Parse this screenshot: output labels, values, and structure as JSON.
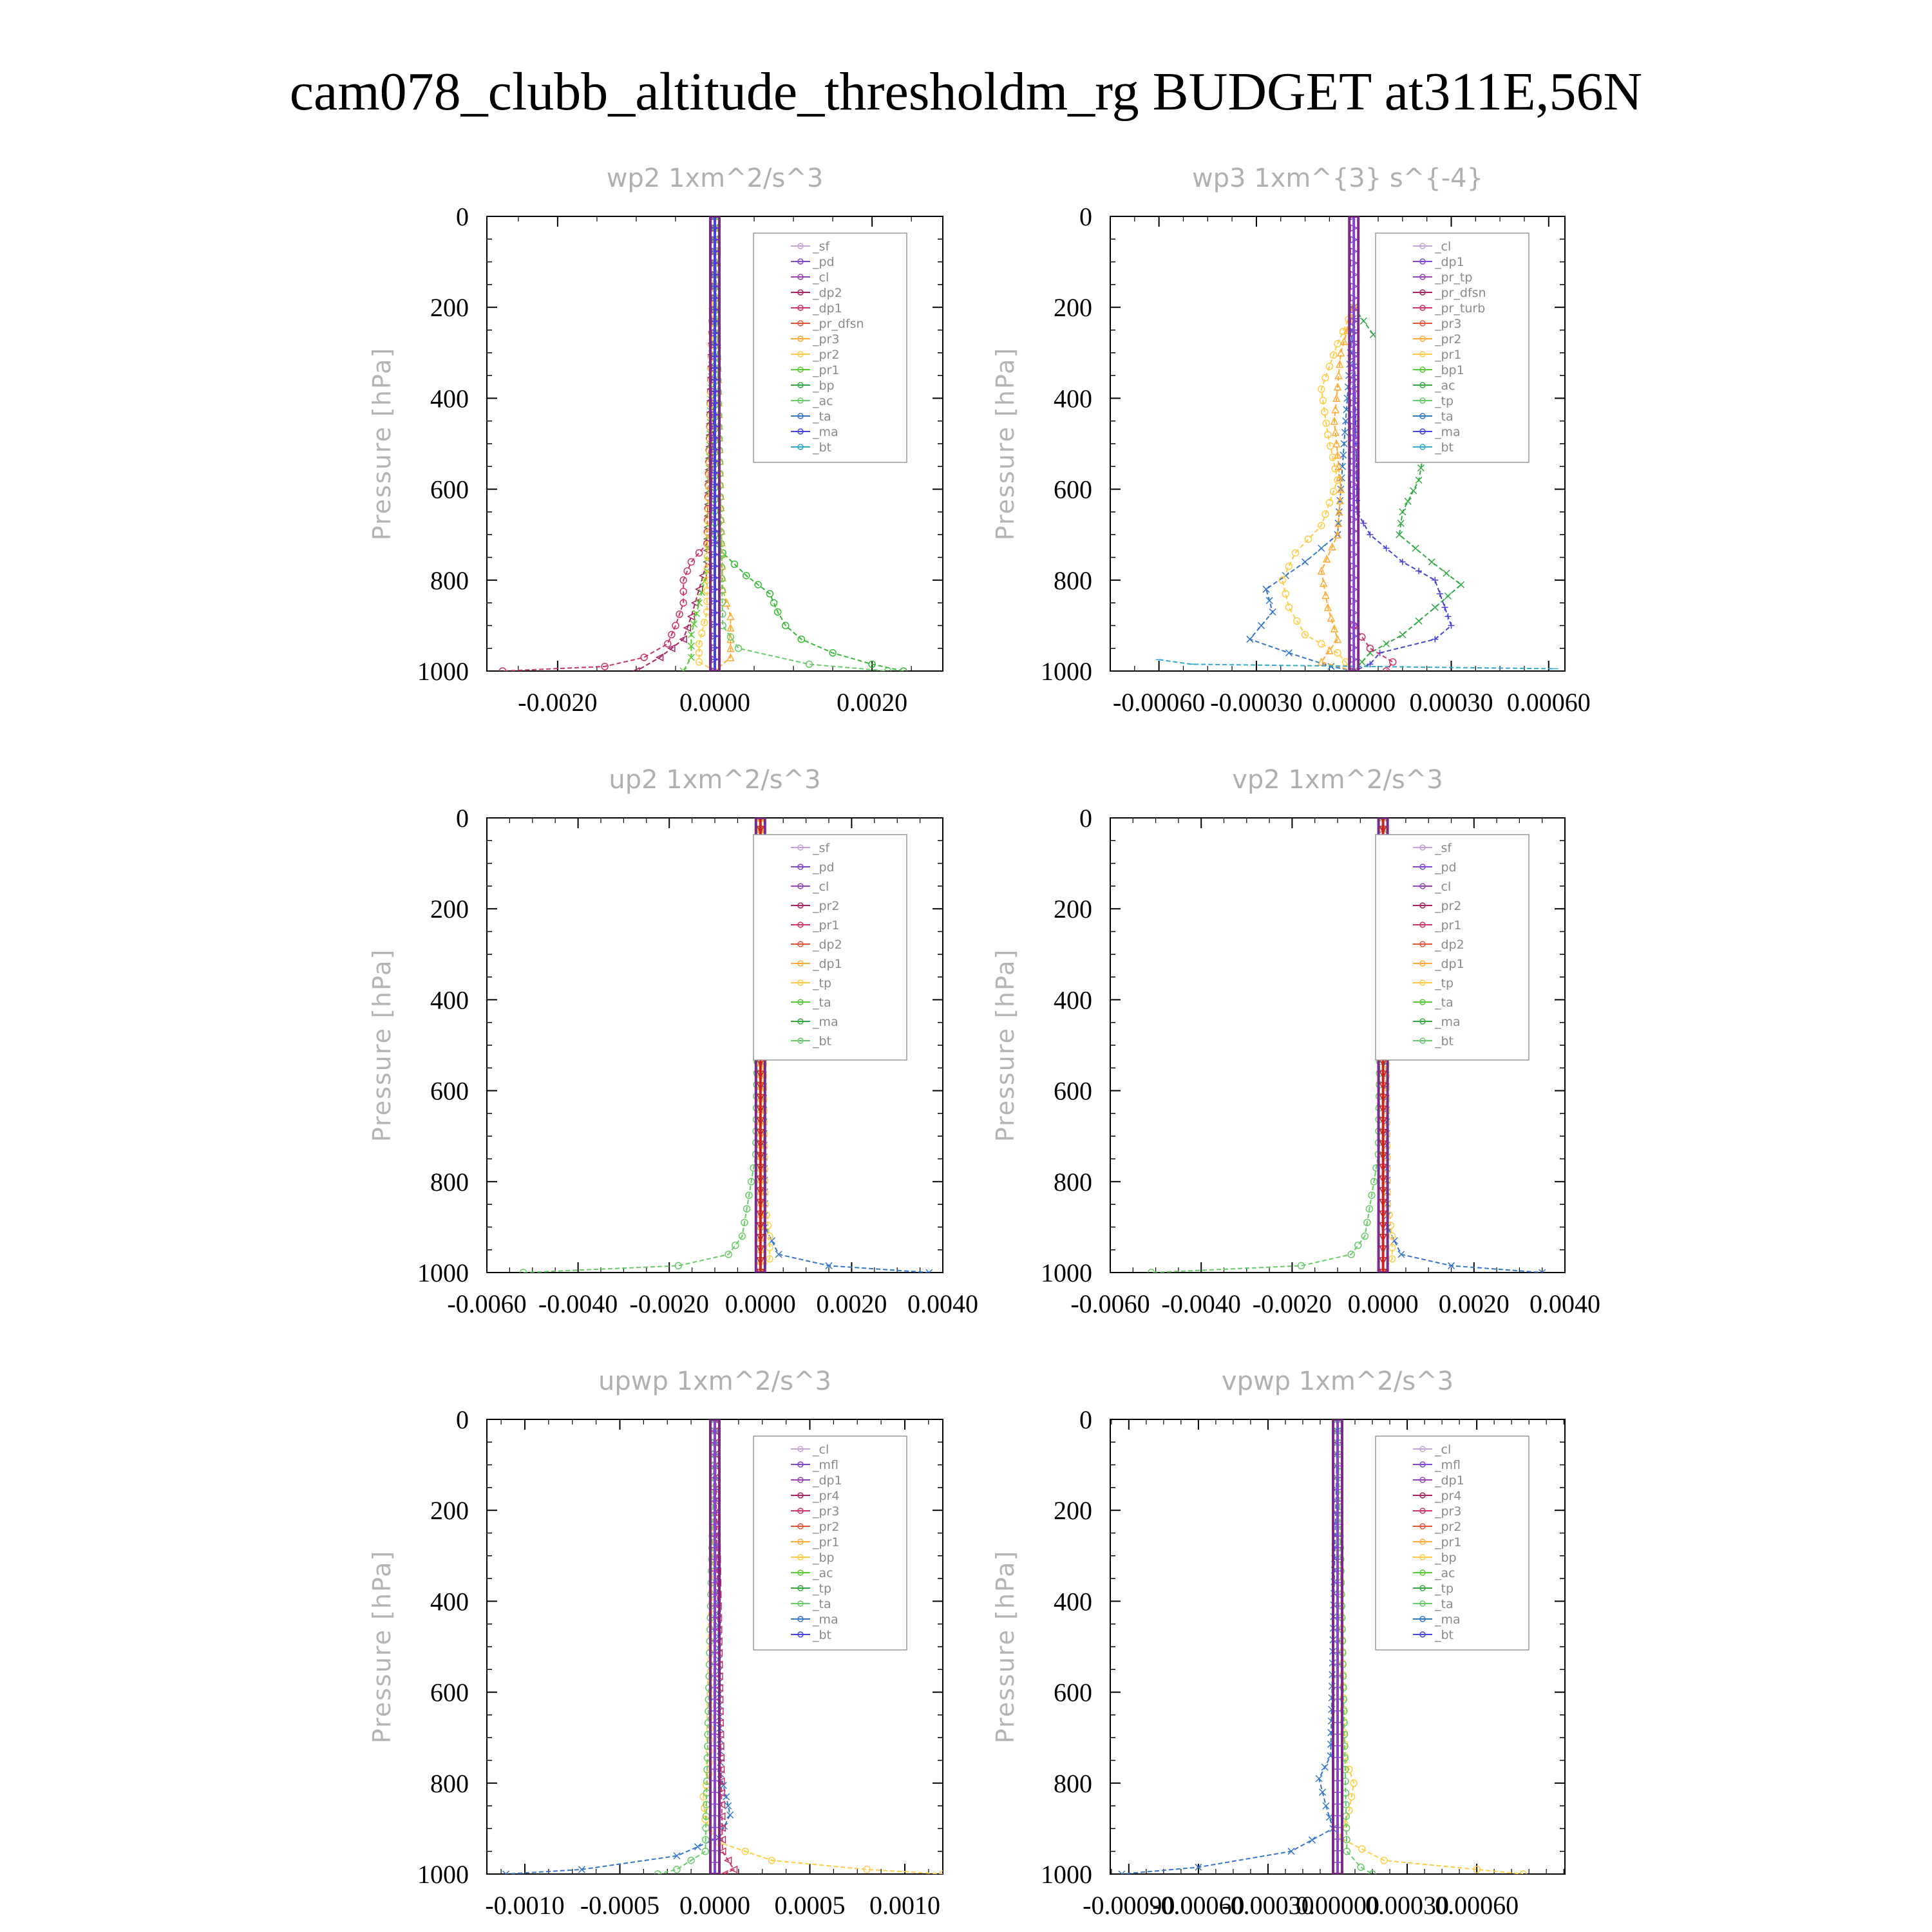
{
  "figure_title": "cam078_clubb_altitude_thresholdm_rg  BUDGET at311E,56N",
  "chart_data": [
    {
      "type": "line",
      "title": "wp2   1xm^2/s^3",
      "ylabel": "Pressure [hPa]",
      "ylim": [
        1000,
        0
      ],
      "yticks": [
        "0",
        "200",
        "400",
        "600",
        "800",
        "1000"
      ],
      "xlim": [
        -0.0029,
        0.0029
      ],
      "xticks": [
        {
          "v": -0.002,
          "label": "-0.0020"
        },
        {
          "v": 0.0,
          "label": "0.0000"
        },
        {
          "v": 0.002,
          "label": "0.0020"
        }
      ],
      "legend": [
        "_sf",
        "_pd",
        "_cl",
        "_dp2",
        "_dp1",
        "_pr_dfsn",
        "_pr3",
        "_pr2",
        "_pr1",
        "_bp",
        "_ac",
        "_ta",
        "_ma",
        "_bt"
      ],
      "legend_position": "top-right",
      "series": [
        {
          "name": "_bp",
          "color": "#33bb33",
          "marker": "o",
          "p": [
            0,
            700,
            740,
            790,
            830,
            870,
            900,
            930,
            960,
            985,
            1000
          ],
          "x": [
            0,
            0,
            0.0001,
            0.0004,
            0.0007,
            0.0008,
            0.0009,
            0.0011,
            0.0015,
            0.002,
            0.0024
          ]
        },
        {
          "name": "_dp1",
          "color": "#cc3366",
          "marker": "o",
          "p": [
            0,
            720,
            760,
            800,
            850,
            900,
            940,
            970,
            990,
            1000
          ],
          "x": [
            0,
            -0.0001,
            -0.0003,
            -0.0004,
            -0.0004,
            -0.0005,
            -0.0006,
            -0.0009,
            -0.0014,
            -0.0027
          ]
        },
        {
          "name": "_dp2",
          "color": "#aa2266",
          "marker": "<",
          "p": [
            0,
            760,
            820,
            880,
            930,
            970,
            1000
          ],
          "x": [
            0,
            -0.0001,
            -0.0002,
            -0.0003,
            -0.0004,
            -0.0007,
            -0.001
          ]
        },
        {
          "name": "_pr3",
          "color": "#ffaa33",
          "marker": "^",
          "p": [
            0,
            820,
            880,
            930,
            970,
            1000
          ],
          "x": [
            0,
            0.0001,
            0.0002,
            0.0002,
            0.0002,
            0.0
          ]
        },
        {
          "name": "_pr1",
          "color": "#55cc33",
          "marker": "x",
          "p": [
            0,
            780,
            850,
            920,
            970,
            1000
          ],
          "x": [
            0,
            -0.0001,
            -0.0002,
            -0.0003,
            -0.0003,
            -0.0004
          ]
        },
        {
          "name": "_pr2",
          "color": "#ffcc44",
          "marker": "o",
          "p": [
            0,
            800,
            870,
            940,
            980,
            1000
          ],
          "x": [
            0,
            -0.0001,
            -0.0001,
            -0.0002,
            -0.0002,
            0
          ]
        },
        {
          "name": "_ac",
          "color": "#66cc66",
          "marker": "o",
          "p": [
            0,
            900,
            950,
            985,
            1000
          ],
          "x": [
            0,
            0.0001,
            0.0003,
            0.0012,
            0.0022
          ]
        },
        {
          "name": "_cl",
          "color": "#8844cc",
          "marker": ">",
          "p": [
            0,
            1000
          ],
          "x": [
            0,
            0
          ]
        },
        {
          "name": "_ta",
          "color": "#4444dd",
          "marker": "+",
          "p": [
            0,
            1000
          ],
          "x": [
            0,
            0
          ]
        }
      ]
    },
    {
      "type": "line",
      "title": "wp3   1xm^{3} s^{-4}",
      "ylabel": "Pressure [hPa]",
      "ylim": [
        1000,
        0
      ],
      "yticks": [
        "0",
        "200",
        "400",
        "600",
        "800",
        "1000"
      ],
      "xlim": [
        -0.00075,
        0.00065
      ],
      "xticks": [
        {
          "v": -0.0006,
          "label": "-0.00060"
        },
        {
          "v": -0.0003,
          "label": "-0.00030"
        },
        {
          "v": 0.0,
          "label": "0.00000"
        },
        {
          "v": 0.0003,
          "label": "0.00030"
        },
        {
          "v": 0.0006,
          "label": "0.00060"
        }
      ],
      "legend": [
        "_cl",
        "_dp1",
        "_pr_tp",
        "_pr_dfsn",
        "_pr_turb",
        "_pr3",
        "_pr2",
        "_pr1",
        "_bp1",
        "_ac",
        "_tp",
        "_ta",
        "_ma",
        "_bt"
      ],
      "legend_position": "top-right",
      "series": [
        {
          "name": "_bp1",
          "color": "#33aa44",
          "marker": "x",
          "p": [
            200,
            260,
            340,
            420,
            500,
            580,
            650,
            700,
            760,
            810,
            860,
            920,
            960,
            1000
          ],
          "x": [
            0,
            6e-05,
            0.00015,
            0.0002,
            0.00022,
            0.0002,
            0.00015,
            0.00014,
            0.00024,
            0.00033,
            0.00025,
            0.00015,
            5e-05,
            0
          ]
        },
        {
          "name": "_tp",
          "color": "#3377cc",
          "marker": "x",
          "p": [
            200,
            700,
            760,
            820,
            870,
            930,
            960,
            990,
            1000
          ],
          "x": [
            0,
            -5e-05,
            -0.00015,
            -0.00027,
            -0.00025,
            -0.00032,
            -0.0002,
            -7e-05,
            0
          ]
        },
        {
          "name": "_ta",
          "color": "#4444dd",
          "marker": "+",
          "p": [
            200,
            650,
            700,
            760,
            800,
            860,
            900,
            930,
            960,
            985,
            1000
          ],
          "x": [
            0,
            1e-05,
            5e-05,
            0.00015,
            0.00025,
            0.00028,
            0.0003,
            0.00025,
            8e-05,
            5e-05,
            0
          ]
        },
        {
          "name": "_pr1",
          "color": "#ffcc44",
          "marker": "o",
          "p": [
            200,
            280,
            380,
            480,
            580,
            680,
            740,
            800,
            860,
            920,
            960,
            1000
          ],
          "x": [
            0,
            -5e-05,
            -0.0001,
            -8e-05,
            -5e-05,
            -0.0001,
            -0.00018,
            -0.00022,
            -0.0002,
            -0.00015,
            -5e-05,
            0
          ]
        },
        {
          "name": "_pr2",
          "color": "#ffaa33",
          "marker": "^",
          "p": [
            200,
            300,
            450,
            600,
            700,
            780,
            860,
            930,
            980,
            1000
          ],
          "x": [
            0,
            -4e-05,
            -6e-05,
            -4e-05,
            -5e-05,
            -0.0001,
            -8e-05,
            -5e-05,
            -0.0001,
            0
          ]
        },
        {
          "name": "_ma",
          "color": "#33aacc",
          "marker": "-",
          "p": [
            975,
            985,
            995
          ],
          "x": [
            -0.0006,
            -0.0005,
            0.00062
          ]
        },
        {
          "name": "_pr_turb",
          "color": "#cc3366",
          "marker": "o",
          "p": [
            900,
            950,
            980,
            1000
          ],
          "x": [
            0,
            5e-05,
            0.00012,
            0.0001
          ]
        },
        {
          "name": "_cl",
          "color": "#8844cc",
          "marker": ">",
          "p": [
            0,
            1000
          ],
          "x": [
            0,
            0
          ]
        }
      ]
    },
    {
      "type": "line",
      "title": "up2   1xm^2/s^3",
      "ylabel": "Pressure [hPa]",
      "ylim": [
        1000,
        0
      ],
      "yticks": [
        "0",
        "200",
        "400",
        "600",
        "800",
        "1000"
      ],
      "xlim": [
        -0.006,
        0.004
      ],
      "xticks": [
        {
          "v": -0.006,
          "label": "-0.0060"
        },
        {
          "v": -0.004,
          "label": "-0.0040"
        },
        {
          "v": -0.002,
          "label": "-0.0020"
        },
        {
          "v": 0.0,
          "label": "0.0000"
        },
        {
          "v": 0.002,
          "label": "0.0020"
        },
        {
          "v": 0.004,
          "label": "0.0040"
        }
      ],
      "legend": [
        "_sf",
        "_pd",
        "_cl",
        "_pr2",
        "_pr1",
        "_dp2",
        "_dp1",
        "_tp",
        "_ta",
        "_ma",
        "_bt"
      ],
      "legend_position": "top-right",
      "series": [
        {
          "name": "_dp1",
          "color": "#66cc66",
          "marker": "o",
          "p": [
            0,
            740,
            800,
            860,
            920,
            960,
            985,
            1000
          ],
          "x": [
            0,
            -0.0001,
            -0.0002,
            -0.0003,
            -0.0004,
            -0.0007,
            -0.0018,
            -0.0052
          ]
        },
        {
          "name": "_tp",
          "color": "#3377cc",
          "marker": "x",
          "p": [
            0,
            900,
            960,
            985,
            1000
          ],
          "x": [
            0,
            0.0001,
            0.0004,
            0.0015,
            0.0037
          ]
        },
        {
          "name": "_pr1",
          "color": "#ffcc44",
          "marker": "o",
          "p": [
            0,
            850,
            920,
            970,
            1000
          ],
          "x": [
            0,
            0.0001,
            0.0002,
            0.0002,
            0
          ]
        },
        {
          "name": "_pr2",
          "color": "#ffaa33",
          "marker": "^",
          "p": [
            0,
            1000
          ],
          "x": [
            0,
            0
          ]
        },
        {
          "name": "_cl",
          "color": "#cc2222",
          "marker": "v",
          "p": [
            0,
            1000
          ],
          "x": [
            0,
            0
          ]
        }
      ]
    },
    {
      "type": "line",
      "title": "vp2   1xm^2/s^3",
      "ylabel": "Pressure [hPa]",
      "ylim": [
        1000,
        0
      ],
      "yticks": [
        "0",
        "200",
        "400",
        "600",
        "800",
        "1000"
      ],
      "xlim": [
        -0.006,
        0.004
      ],
      "xticks": [
        {
          "v": -0.006,
          "label": "-0.0060"
        },
        {
          "v": -0.004,
          "label": "-0.0040"
        },
        {
          "v": -0.002,
          "label": "-0.0020"
        },
        {
          "v": 0.0,
          "label": "0.0000"
        },
        {
          "v": 0.002,
          "label": "0.0020"
        },
        {
          "v": 0.004,
          "label": "0.0040"
        }
      ],
      "legend": [
        "_sf",
        "_pd",
        "_cl",
        "_pr2",
        "_pr1",
        "_dp2",
        "_dp1",
        "_tp",
        "_ta",
        "_ma",
        "_bt"
      ],
      "legend_position": "top-right",
      "series": [
        {
          "name": "_dp1",
          "color": "#66cc66",
          "marker": "o",
          "p": [
            0,
            740,
            800,
            860,
            920,
            960,
            985,
            1000
          ],
          "x": [
            0,
            -0.0001,
            -0.0002,
            -0.0003,
            -0.0004,
            -0.0007,
            -0.0018,
            -0.0051
          ]
        },
        {
          "name": "_tp",
          "color": "#3377cc",
          "marker": "x",
          "p": [
            0,
            900,
            960,
            985,
            1000
          ],
          "x": [
            0,
            0.0001,
            0.0004,
            0.0015,
            0.0035
          ]
        },
        {
          "name": "_pr1",
          "color": "#ffcc44",
          "marker": "o",
          "p": [
            0,
            850,
            920,
            970,
            1000
          ],
          "x": [
            0,
            0.0001,
            0.0002,
            0.0002,
            0
          ]
        },
        {
          "name": "_cl",
          "color": "#cc2222",
          "marker": "v",
          "p": [
            0,
            1000
          ],
          "x": [
            0,
            0
          ]
        }
      ]
    },
    {
      "type": "line",
      "title": "upwp   1xm^2/s^3",
      "ylabel": "Pressure [hPa]",
      "ylim": [
        1000,
        0
      ],
      "yticks": [
        "0",
        "200",
        "400",
        "600",
        "800",
        "1000"
      ],
      "xlim": [
        -0.0012,
        0.0012
      ],
      "xticks": [
        {
          "v": -0.001,
          "label": "-0.0010"
        },
        {
          "v": -0.0005,
          "label": "-0.0005"
        },
        {
          "v": 0.0,
          "label": "0.0000"
        },
        {
          "v": 0.0005,
          "label": "0.0005"
        },
        {
          "v": 0.001,
          "label": "0.0010"
        }
      ],
      "legend": [
        "_cl",
        "_mfl",
        "_dp1",
        "_pr4",
        "_pr3",
        "_pr2",
        "_pr1",
        "_bp",
        "_ac",
        "_tp",
        "_ta",
        "_ma",
        "_bt"
      ],
      "legend_position": "top-right",
      "series": [
        {
          "name": "_pr1",
          "color": "#ffcc44",
          "marker": "o",
          "p": [
            0,
            780,
            830,
            880,
            930,
            970,
            990,
            1000
          ],
          "x": [
            0,
            -3e-05,
            -6e-05,
            -5e-05,
            2e-05,
            0.0003,
            0.0008,
            0.0012
          ]
        },
        {
          "name": "_tp",
          "color": "#3377cc",
          "marker": "x",
          "p": [
            0,
            780,
            830,
            870,
            920,
            960,
            990,
            1000
          ],
          "x": [
            0,
            3e-05,
            6e-05,
            8e-05,
            2e-05,
            -0.0002,
            -0.0007,
            -0.0011
          ]
        },
        {
          "name": "_ac",
          "color": "#66cc66",
          "marker": "o",
          "p": [
            0,
            950,
            990,
            1000
          ],
          "x": [
            0,
            -5e-05,
            -0.0002,
            -0.0003
          ]
        },
        {
          "name": "_dp1",
          "color": "#cc3366",
          "marker": "<",
          "p": [
            0,
            950,
            990,
            1000
          ],
          "x": [
            0,
            4e-05,
            0.0001,
            5e-05
          ]
        },
        {
          "name": "_cl",
          "color": "#8844cc",
          "marker": "+",
          "p": [
            0,
            1000
          ],
          "x": [
            0,
            0
          ]
        }
      ]
    },
    {
      "type": "line",
      "title": "vpwp   1xm^2/s^3",
      "ylabel": "Pressure [hPa]",
      "ylim": [
        1000,
        0
      ],
      "yticks": [
        "0",
        "200",
        "400",
        "600",
        "800",
        "1000"
      ],
      "xlim": [
        -0.00098,
        0.00098
      ],
      "xticks": [
        {
          "v": -0.0009,
          "label": "-0.00090"
        },
        {
          "v": -0.0006,
          "label": "-0.00060"
        },
        {
          "v": -0.0003,
          "label": "-0.00030"
        },
        {
          "v": 0.0,
          "label": "0.00000"
        },
        {
          "v": 0.0003,
          "label": "0.00030"
        },
        {
          "v": 0.0006,
          "label": "0.00060"
        }
      ],
      "legend": [
        "_cl",
        "_mfl",
        "_dp1",
        "_pr4",
        "_pr3",
        "_pr2",
        "_pr1",
        "_bp",
        "_ac",
        "_tp",
        "_ta",
        "_ma",
        "_bt"
      ],
      "legend_position": "top-right",
      "series": [
        {
          "name": "_tp",
          "color": "#3377cc",
          "marker": "x",
          "p": [
            0,
            740,
            790,
            850,
            900,
            950,
            985,
            1000
          ],
          "x": [
            0,
            -3e-05,
            -8e-05,
            -5e-05,
            -2e-05,
            -0.0002,
            -0.0006,
            -0.00093
          ]
        },
        {
          "name": "_pr1",
          "color": "#ffcc44",
          "marker": "o",
          "p": [
            0,
            740,
            800,
            860,
            920,
            970,
            990,
            1000
          ],
          "x": [
            0,
            3e-05,
            7e-05,
            5e-05,
            1e-05,
            0.0002,
            0.0006,
            0.0008
          ]
        },
        {
          "name": "_ac",
          "color": "#66cc66",
          "marker": "o",
          "p": [
            0,
            950,
            985,
            1000
          ],
          "x": [
            0,
            4e-05,
            0.0001,
            0.00015
          ]
        },
        {
          "name": "_cl",
          "color": "#8844cc",
          "marker": "+",
          "p": [
            0,
            1000
          ],
          "x": [
            0,
            0
          ]
        }
      ]
    }
  ]
}
